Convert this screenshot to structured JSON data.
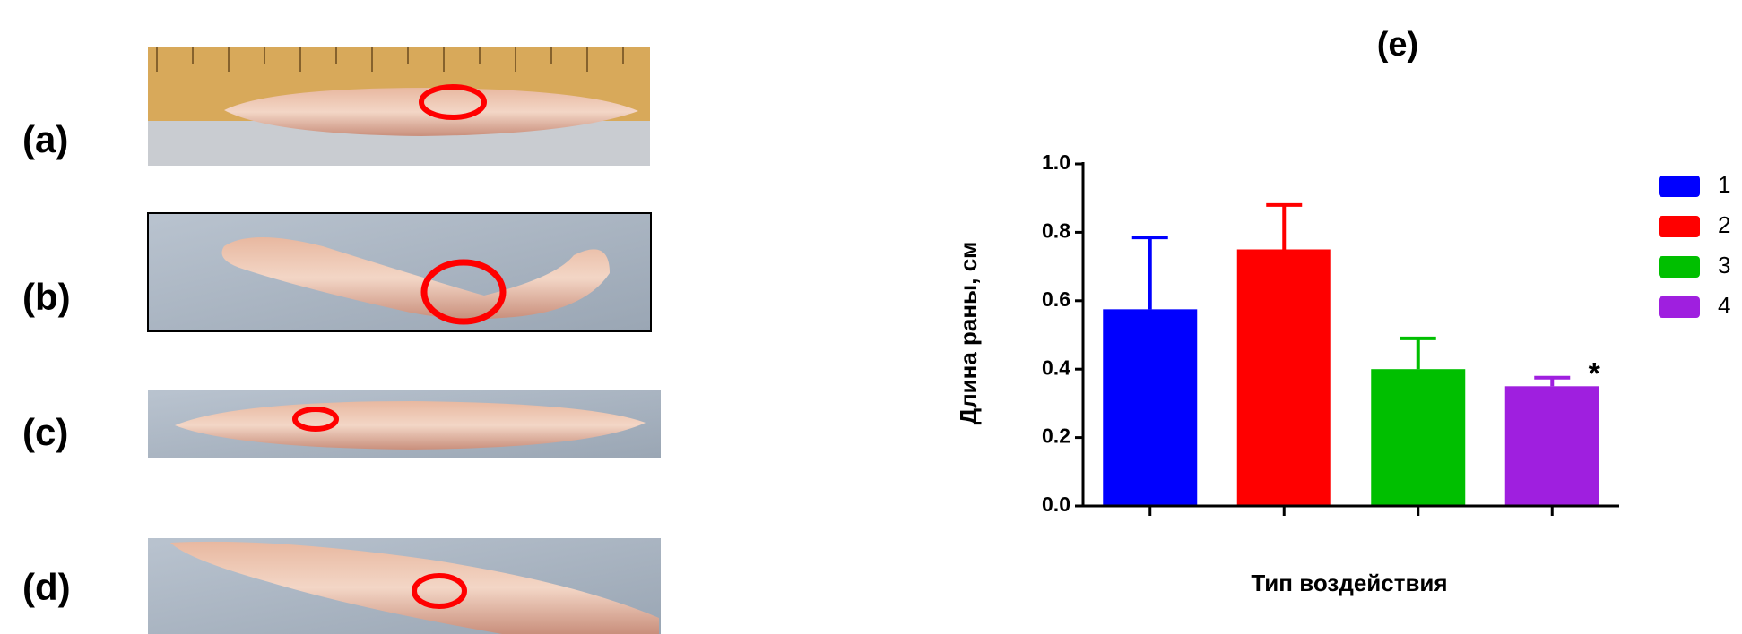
{
  "panels": [
    "(a)",
    "(b)",
    "(c)",
    "(d)"
  ],
  "chart_data": {
    "type": "bar",
    "title": "(e)",
    "y_label": "Длина раны, см",
    "x_label": "Тип воздействия",
    "categories": [
      "1",
      "2",
      "3",
      "4"
    ],
    "values": [
      0.575,
      0.75,
      0.4,
      0.35
    ],
    "errors": [
      0.21,
      0.13,
      0.09,
      0.025
    ],
    "colors": [
      "#0000ff",
      "#ff0000",
      "#00bf00",
      "#9f1fdf"
    ],
    "annotation": "*",
    "ylim": [
      0,
      1
    ],
    "yticks": [
      {
        "value": 0,
        "label": "0.0"
      },
      0.2,
      0.4,
      0.6,
      0.8,
      {
        "value": 1,
        "label": "1.0"
      }
    ],
    "legend": "right"
  }
}
